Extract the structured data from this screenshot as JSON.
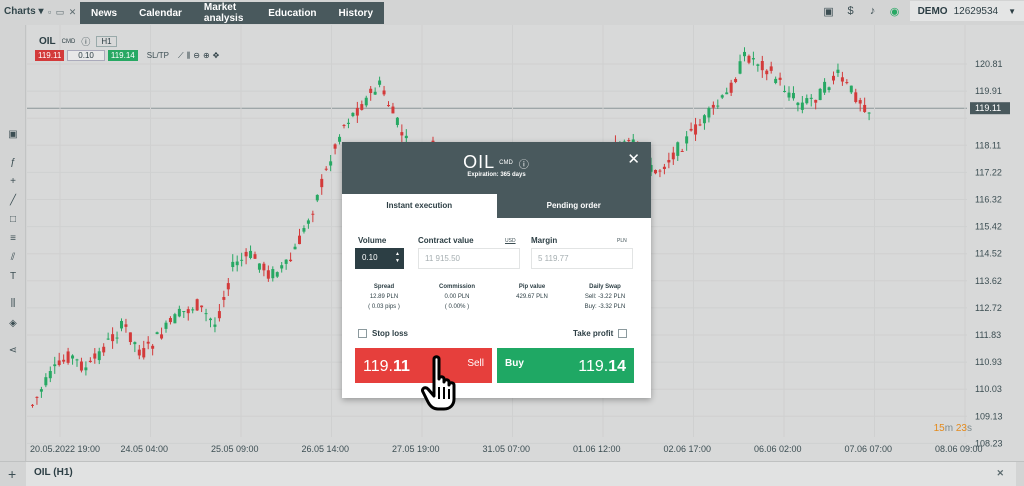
{
  "topbar": {
    "charts_menu": "Charts",
    "nav": [
      "News",
      "Calendar",
      "Market analysis",
      "Education",
      "History"
    ],
    "account_mode": "DEMO",
    "account_number": "12629534"
  },
  "chart": {
    "symbol": "OIL",
    "symbol_type": "CMD",
    "timeframe": "H1",
    "quick_sell": "119.11",
    "quick_volume": "0.10",
    "quick_buy": "119.14",
    "quick_sltp": "SL/TP",
    "price_labels": [
      "120.81",
      "119.91",
      "119.11",
      "118.11",
      "117.22",
      "116.32",
      "115.42",
      "114.52",
      "113.62",
      "112.72",
      "111.83",
      "110.93",
      "110.03",
      "109.13",
      "108.23"
    ],
    "current_price": "119.11",
    "time_labels": [
      "20.05.2022 19:00",
      "24.05 04:00",
      "25.05 09:00",
      "26.05 14:00",
      "27.05 19:00",
      "31.05 07:00",
      "01.06 12:00",
      "02.06 17:00",
      "06.06 02:00",
      "07.06 07:00",
      "08.06 09:00"
    ],
    "timer_min": "15",
    "timer_min_unit": "m",
    "timer_sec": "23",
    "timer_sec_unit": "s",
    "colors": {
      "up": "#27a863",
      "down": "#d33a3a"
    }
  },
  "bottom_tab": {
    "label": "OIL (H1)"
  },
  "modal": {
    "symbol": "OIL",
    "symbol_type": "CMD",
    "expiration": "Expiration: 365 days",
    "tab_instant": "Instant execution",
    "tab_pending": "Pending order",
    "volume_label": "Volume",
    "volume_value": "0.10",
    "contract_label": "Contract value",
    "contract_unit": "USD",
    "contract_value": "11 915.50",
    "margin_label": "Margin",
    "margin_unit": "PLN",
    "margin_value": "5 119.77",
    "spread_label": "Spread",
    "spread_value": "12.89 PLN",
    "spread_pips": "( 0.03 pips )",
    "commission_label": "Commission",
    "commission_value": "0.00 PLN",
    "commission_pct": "( 0.00% )",
    "pip_label": "Pip value",
    "pip_value": "429.67 PLN",
    "swap_label": "Daily Swap",
    "swap_sell": "Sell: -3.22 PLN",
    "swap_buy": "Buy: -3.32 PLN",
    "stop_loss_label": "Stop loss",
    "take_profit_label": "Take profit",
    "sell_price_prefix": "119.",
    "sell_price_big": "11",
    "sell_label": "Sell",
    "buy_label": "Buy",
    "buy_price_prefix": "119.",
    "buy_price_big": "14",
    "colors": {
      "header": "#49595d",
      "sell": "#e63f3c",
      "buy": "#1fa864"
    }
  }
}
